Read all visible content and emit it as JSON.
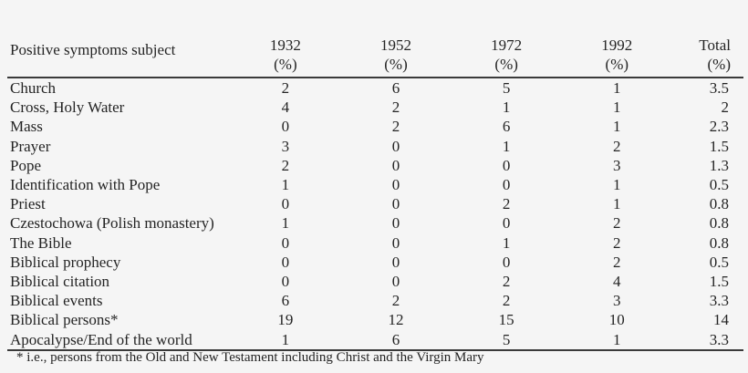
{
  "page": {
    "background_color": "#f5f5f5",
    "text_color": "#242424",
    "rule_color": "#3a3a3a"
  },
  "table": {
    "subject_header": "Positive symptoms subject",
    "columns": [
      {
        "year": "1932",
        "unit": "(%)"
      },
      {
        "year": "1952",
        "unit": "(%)"
      },
      {
        "year": "1972",
        "unit": "(%)"
      },
      {
        "year": "1992",
        "unit": "(%)"
      },
      {
        "year": "Total",
        "unit": "(%)"
      }
    ],
    "rows": [
      {
        "subject": "Church",
        "values": [
          "2",
          "6",
          "5",
          "1",
          "3.5"
        ]
      },
      {
        "subject": "Cross, Holy Water",
        "values": [
          "4",
          "2",
          "1",
          "1",
          "2"
        ]
      },
      {
        "subject": "Mass",
        "values": [
          "0",
          "2",
          "6",
          "1",
          "2.3"
        ]
      },
      {
        "subject": "Prayer",
        "values": [
          "3",
          "0",
          "1",
          "2",
          "1.5"
        ]
      },
      {
        "subject": "Pope",
        "values": [
          "2",
          "0",
          "0",
          "3",
          "1.3"
        ]
      },
      {
        "subject": "Identification with Pope",
        "values": [
          "1",
          "0",
          "0",
          "1",
          "0.5"
        ]
      },
      {
        "subject": "Priest",
        "values": [
          "0",
          "0",
          "2",
          "1",
          "0.8"
        ]
      },
      {
        "subject": "Czestochowa (Polish monastery)",
        "values": [
          "1",
          "0",
          "0",
          "2",
          "0.8"
        ]
      },
      {
        "subject": "The Bible",
        "values": [
          "0",
          "0",
          "1",
          "2",
          "0.8"
        ]
      },
      {
        "subject": "Biblical prophecy",
        "values": [
          "0",
          "0",
          "0",
          "2",
          "0.5"
        ]
      },
      {
        "subject": "Biblical citation",
        "values": [
          "0",
          "0",
          "2",
          "4",
          "1.5"
        ]
      },
      {
        "subject": "Biblical events",
        "values": [
          "6",
          "2",
          "2",
          "3",
          "3.3"
        ]
      },
      {
        "subject": "Biblical persons*",
        "values": [
          "19",
          "12",
          "15",
          "10",
          "14"
        ]
      },
      {
        "subject": "Apocalypse/End of the world",
        "values": [
          "1",
          "6",
          "5",
          "1",
          "3.3"
        ]
      }
    ],
    "footnote": "* i.e., persons from the Old and New Testament including Christ and the Virgin Mary"
  }
}
